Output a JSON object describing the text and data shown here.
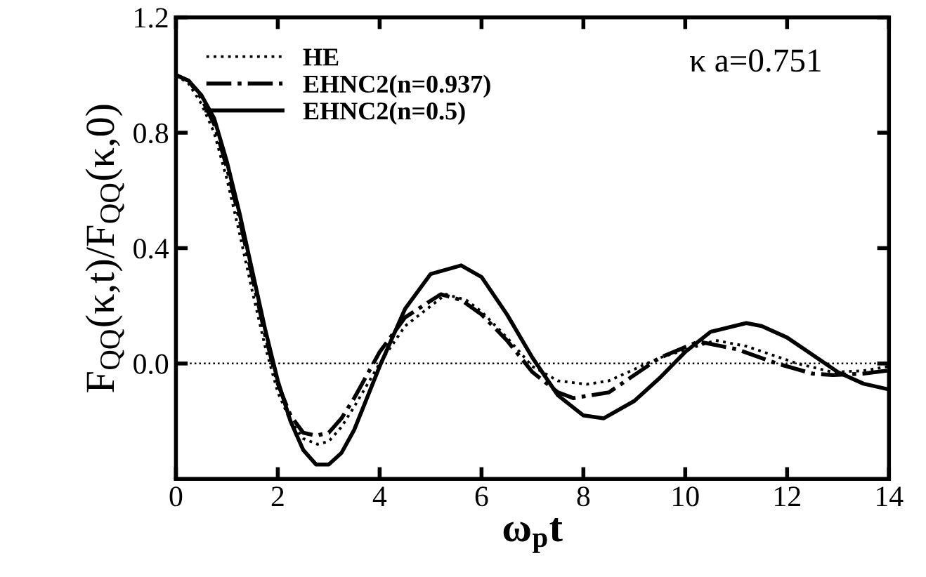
{
  "chart_data": {
    "type": "line",
    "xlabel": "ω$_{p}$t",
    "ylabel": "F$_{QQ}$(κ,t)/F$_{QQ}$(κ,0)",
    "xlim": [
      0,
      14
    ],
    "xticks": [
      0,
      2,
      4,
      6,
      8,
      10,
      12,
      14
    ],
    "ylim": [
      -0.4,
      1.2
    ],
    "yticks": [
      {
        "value": 0,
        "label": "0.0"
      },
      {
        "value": 0.4,
        "label": "0.4"
      },
      {
        "value": 0.8,
        "label": "0.8"
      },
      {
        "value": 1.2,
        "label": "1.2"
      }
    ],
    "grid": false,
    "legend": "top left",
    "marker": "none",
    "annotations": [
      "κ a=0.751"
    ],
    "ref_lines": [
      {
        "axis": "y",
        "value": 0,
        "color": "#000000",
        "line_style": "dotted"
      }
    ],
    "series": [
      {
        "name": "HE",
        "color": "#000000",
        "line_style": "dotted",
        "x": [
          0,
          0.25,
          0.5,
          0.75,
          1,
          1.25,
          1.5,
          1.75,
          2,
          2.25,
          2.5,
          2.78,
          3,
          3.25,
          3.5,
          4,
          4.5,
          5.3,
          5.7,
          6,
          6.5,
          7,
          7.5,
          8.07,
          8.5,
          9,
          9.5,
          10.6,
          11.2,
          12.2,
          12.9,
          13.5,
          14
        ],
        "values": [
          1.0,
          0.97,
          0.9,
          0.8,
          0.64,
          0.45,
          0.25,
          0.06,
          -0.1,
          -0.2,
          -0.26,
          -0.28,
          -0.27,
          -0.22,
          -0.15,
          0.0,
          0.13,
          0.24,
          0.22,
          0.18,
          0.09,
          -0.01,
          -0.06,
          -0.072,
          -0.06,
          -0.02,
          0.02,
          0.08,
          0.06,
          0.0,
          -0.03,
          -0.025,
          -0.01
        ]
      },
      {
        "name": "EHNC2(n=0.937)",
        "color": "#000000",
        "line_style": "dashdot",
        "x": [
          0,
          0.25,
          0.5,
          0.75,
          1,
          1.25,
          1.5,
          1.75,
          2,
          2.25,
          2.5,
          2.75,
          3,
          3.25,
          3.5,
          4,
          4.5,
          5.2,
          5.6,
          6,
          6.5,
          7,
          7.5,
          7.8,
          8.5,
          9,
          9.5,
          10.26,
          11,
          11.8,
          12.5,
          12.9,
          13.5,
          14
        ],
        "values": [
          1.0,
          0.98,
          0.92,
          0.83,
          0.68,
          0.5,
          0.3,
          0.1,
          -0.07,
          -0.18,
          -0.24,
          -0.25,
          -0.24,
          -0.19,
          -0.12,
          0.04,
          0.16,
          0.24,
          0.22,
          0.17,
          0.08,
          -0.03,
          -0.1,
          -0.12,
          -0.1,
          -0.04,
          0.02,
          0.076,
          0.05,
          0.0,
          -0.035,
          -0.04,
          -0.035,
          -0.024
        ]
      },
      {
        "name": "EHNC2(n=0.5)",
        "color": "#000000",
        "line_style": "solid",
        "x": [
          0,
          0.25,
          0.5,
          0.75,
          1,
          1.25,
          1.5,
          1.75,
          2,
          2.25,
          2.5,
          2.75,
          3,
          3.25,
          3.5,
          4,
          4.5,
          5,
          5.6,
          6,
          6.5,
          7,
          7.5,
          8,
          8.4,
          9,
          9.5,
          10,
          10.5,
          11.2,
          11.5,
          12,
          12.5,
          13,
          13.5,
          14
        ],
        "values": [
          1.0,
          0.98,
          0.93,
          0.85,
          0.7,
          0.52,
          0.32,
          0.12,
          -0.06,
          -0.2,
          -0.3,
          -0.35,
          -0.35,
          -0.31,
          -0.23,
          -0.01,
          0.19,
          0.31,
          0.34,
          0.3,
          0.17,
          0.02,
          -0.11,
          -0.18,
          -0.19,
          -0.13,
          -0.05,
          0.04,
          0.11,
          0.14,
          0.13,
          0.09,
          0.03,
          -0.03,
          -0.07,
          -0.09
        ]
      }
    ]
  }
}
